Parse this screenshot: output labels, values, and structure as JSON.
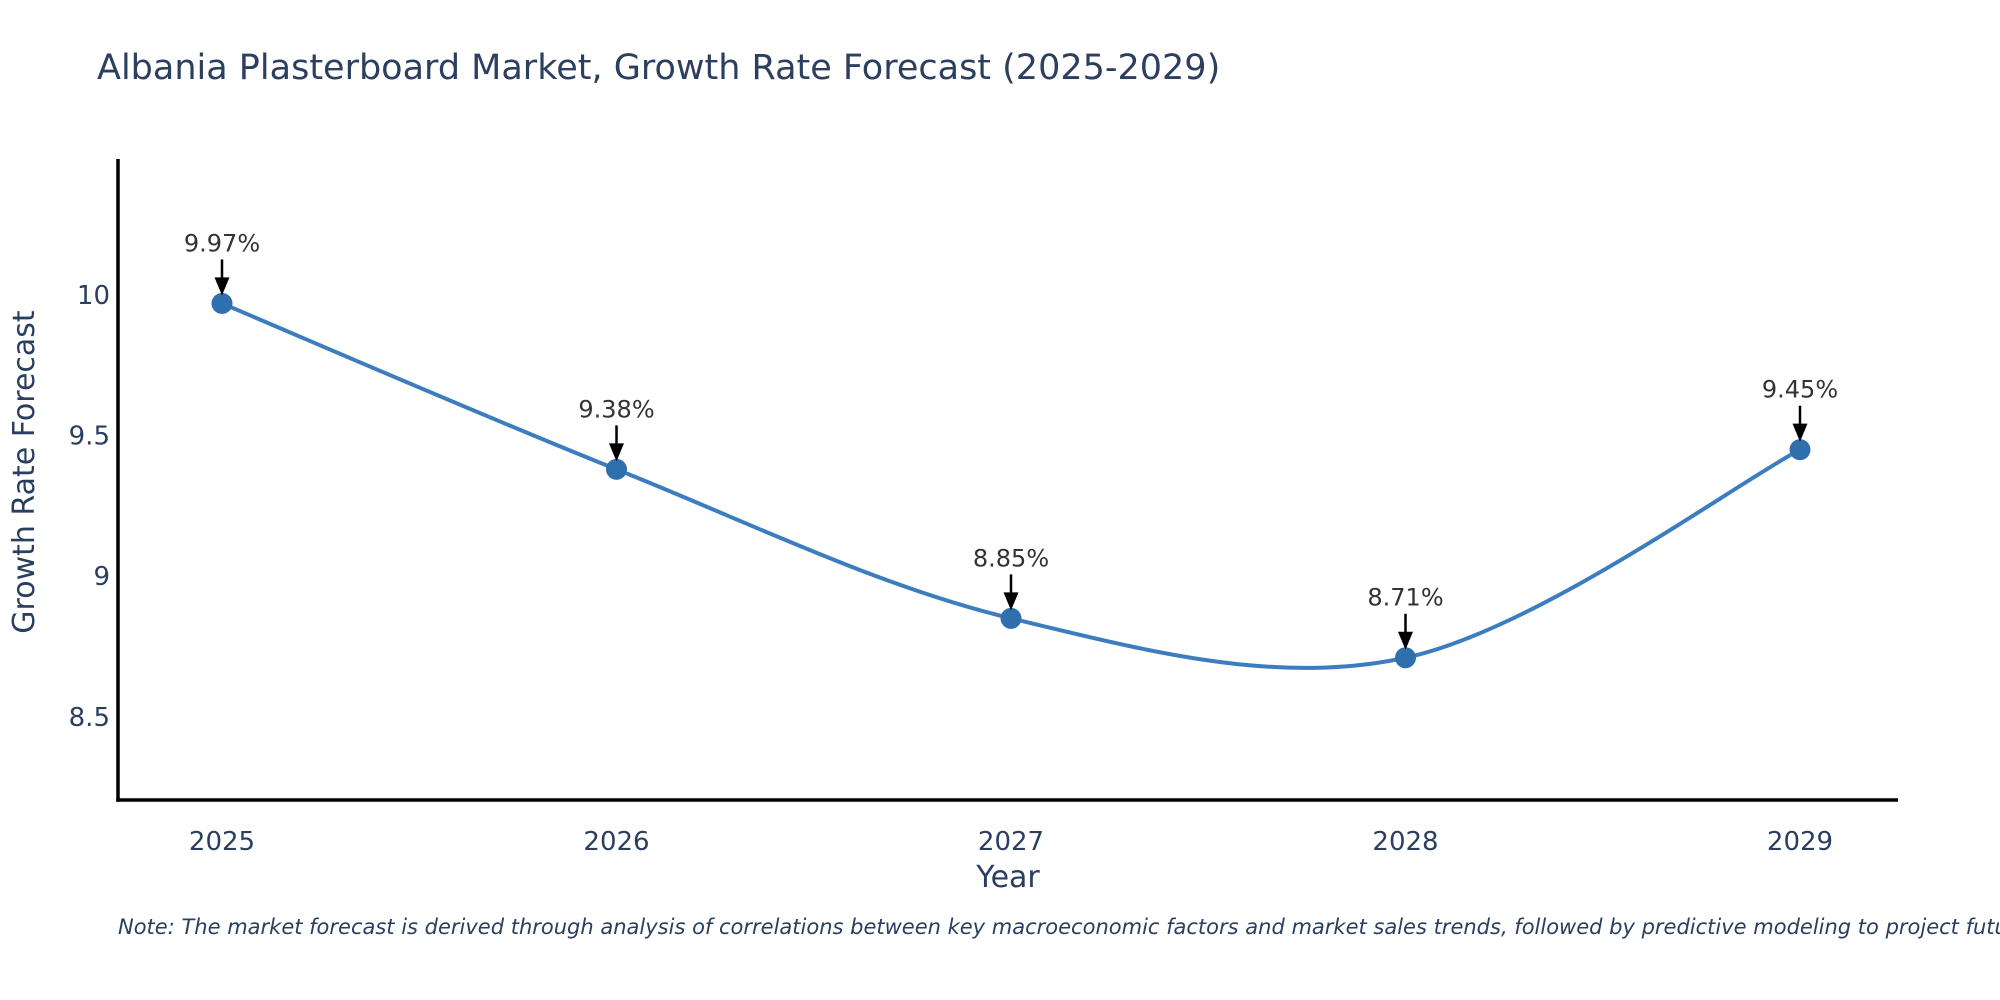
{
  "title": "Albania Plasterboard Market, Growth Rate Forecast (2025-2029)",
  "note": "Note: The market forecast is derived through analysis of correlations between key macroeconomic factors and market sales trends, followed by predictive modeling to project future sales",
  "chart_data": {
    "type": "line",
    "line_shape": "spline",
    "x": [
      2025,
      2026,
      2027,
      2028,
      2029
    ],
    "values": [
      9.97,
      9.38,
      8.85,
      8.71,
      9.45
    ],
    "point_labels": [
      "9.97%",
      "9.38%",
      "8.85%",
      "8.71%",
      "9.45%"
    ],
    "x_ticks": [
      "2025",
      "2026",
      "2027",
      "2028",
      "2029"
    ],
    "y_ticks": [
      10,
      9.5,
      9,
      8.5
    ],
    "xlabel": "Year",
    "ylabel": "Growth Rate Forecast",
    "xlim": [
      2024.74,
      2029.25
    ],
    "ylim": [
      8.2,
      10.48
    ],
    "grid": false,
    "legend": "none",
    "markers": true,
    "colors": {
      "line": "#3c7dbf",
      "marker": "#2f6fae",
      "axis": "#000000",
      "text": "#2a3f5f",
      "annotation_text": "#333333",
      "arrow": "#000000",
      "background": "#ffffff"
    }
  }
}
